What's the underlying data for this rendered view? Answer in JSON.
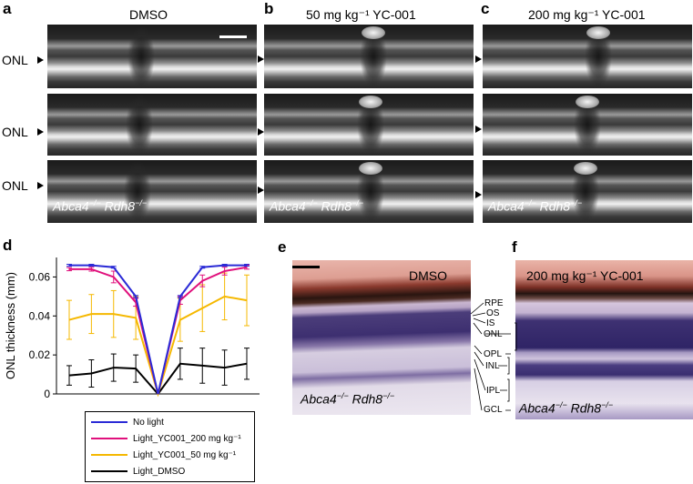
{
  "panels": {
    "a": {
      "label": "a",
      "title": "DMSO"
    },
    "b": {
      "label": "b",
      "title": "50 mg kg⁻¹ YC-001"
    },
    "c": {
      "label": "c",
      "title": "200 mg kg⁻¹ YC-001"
    },
    "d": {
      "label": "d"
    },
    "e": {
      "label": "e",
      "title": "DMSO"
    },
    "f": {
      "label": "f",
      "title": "200 mg kg⁻¹ YC-001"
    }
  },
  "onl_label": "ONL",
  "genotype": {
    "a": "Abca4",
    "sup1": "−/−",
    "b": "Rdh8",
    "sup2": "−/−"
  },
  "layers": [
    "RPE",
    "OS",
    "IS",
    "ONL",
    "OPL",
    "INL",
    "IPL",
    "GCL"
  ],
  "chart_data": {
    "type": "line",
    "ylabel": "ONL thickness (mm)",
    "xlabel": "",
    "ylim": [
      0,
      0.07
    ],
    "yticks": [
      0,
      0.02,
      0.04,
      0.06
    ],
    "ytick_labels": [
      "0",
      "0.02",
      "0.04",
      "0.06"
    ],
    "x": [
      1,
      2,
      3,
      4,
      5,
      6,
      7,
      8,
      9
    ],
    "series": [
      {
        "name": "No light",
        "color": "#2b2bd6",
        "values": [
          0.066,
          0.066,
          0.065,
          0.05,
          0.0,
          0.05,
          0.065,
          0.066,
          0.066
        ],
        "errors": [
          0.0005,
          0.0005,
          0.0005,
          0.0005,
          0,
          0.0005,
          0.0005,
          0.0005,
          0.0005
        ]
      },
      {
        "name": "Light_YC001_200 mg kg⁻¹",
        "color": "#e0107c",
        "values": [
          0.064,
          0.064,
          0.06,
          0.047,
          0.0,
          0.048,
          0.058,
          0.063,
          0.065
        ],
        "errors": [
          0.0008,
          0.001,
          0.003,
          0.002,
          0,
          0.002,
          0.003,
          0.002,
          0.001
        ]
      },
      {
        "name": "Light_YC001_50 mg kg⁻¹",
        "color": "#f5b800",
        "values": [
          0.038,
          0.041,
          0.041,
          0.039,
          0.0,
          0.038,
          0.044,
          0.05,
          0.048
        ],
        "errors": [
          0.01,
          0.01,
          0.012,
          0.011,
          0,
          0.011,
          0.012,
          0.012,
          0.013
        ]
      },
      {
        "name": "Light_DMSO",
        "color": "#000000",
        "values": [
          0.0095,
          0.0105,
          0.0135,
          0.013,
          0.0,
          0.0155,
          0.0145,
          0.0135,
          0.0155
        ],
        "errors": [
          0.005,
          0.007,
          0.007,
          0.007,
          0,
          0.008,
          0.009,
          0.009,
          0.008
        ]
      }
    ],
    "legend_position": "bottom"
  }
}
